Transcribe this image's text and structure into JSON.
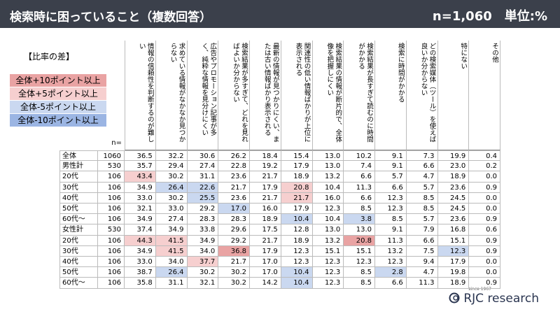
{
  "header": {
    "title": "検索時に困っていること（複数回答）",
    "note": "n=1,060　単位:%"
  },
  "legend": {
    "title": "【比率の差】",
    "items": [
      {
        "label": "全体+10ポイント以上",
        "color": "#e9a3a3"
      },
      {
        "label": "全体+5ポイント以上",
        "color": "#f6cfcf"
      },
      {
        "label": "全体-5ポイント以上",
        "color": "#cad8f0"
      },
      {
        "label": "全体-10ポイント以上",
        "color": "#9bb5e3"
      }
    ]
  },
  "table": {
    "n_label": "n=",
    "columns": [
      "情報の信頼性を判断するのが難しい",
      "求めている情報がなかなか見つからない",
      "広告やプロモーション記事が多く、純粋な情報を見分けにくい",
      "検索結果が多すぎて、どれを見ればよいか分からない",
      "最新の情報が見つかりにくい、または古い情報ばかり表示される",
      "関連性の低い情報ばかりが上位に表示される",
      "検索結果の情報が断片的で、全体像を把握しにくい",
      "検索結果が長すぎて読むのに時間がかかる",
      "検索に時間がかかる",
      "どの検索媒体（ツール）を使えば良いか分からない",
      "特にない",
      "その他"
    ],
    "rows": [
      {
        "label": "全体",
        "n": "1060",
        "cells": [
          "36.5",
          "32.2",
          "30.6",
          "26.2",
          "18.4",
          "15.4",
          "13.0",
          "10.2",
          "9.1",
          "7.3",
          "19.9",
          "0.4"
        ],
        "highlight": [
          null,
          null,
          null,
          null,
          null,
          null,
          null,
          null,
          null,
          null,
          null,
          null
        ]
      },
      {
        "label": "男性計",
        "n": "530",
        "cells": [
          "35.7",
          "29.4",
          "27.4",
          "22.8",
          "19.2",
          "17.9",
          "13.0",
          "7.4",
          "9.1",
          "6.6",
          "23.0",
          "0.2"
        ],
        "highlight": [
          null,
          null,
          null,
          null,
          null,
          null,
          null,
          null,
          null,
          null,
          null,
          null
        ]
      },
      {
        "label": "20代",
        "n": "106",
        "cells": [
          "43.4",
          "30.2",
          "31.1",
          "23.6",
          "21.7",
          "18.9",
          "13.2",
          "6.6",
          "5.7",
          "4.7",
          "18.9",
          "0.0"
        ],
        "highlight": [
          1,
          null,
          null,
          null,
          null,
          null,
          null,
          null,
          null,
          null,
          null,
          null
        ]
      },
      {
        "label": "30代",
        "n": "106",
        "cells": [
          "34.9",
          "26.4",
          "22.6",
          "21.7",
          "17.9",
          "20.8",
          "10.4",
          "11.3",
          "6.6",
          "5.7",
          "23.6",
          "0.9"
        ],
        "highlight": [
          null,
          2,
          2,
          null,
          null,
          1,
          null,
          null,
          null,
          null,
          null,
          null
        ]
      },
      {
        "label": "40代",
        "n": "106",
        "cells": [
          "33.0",
          "30.2",
          "25.5",
          "23.6",
          "21.7",
          "21.7",
          "16.0",
          "6.6",
          "12.3",
          "8.5",
          "24.5",
          "0.0"
        ],
        "highlight": [
          null,
          null,
          2,
          null,
          null,
          1,
          null,
          null,
          null,
          null,
          null,
          null
        ]
      },
      {
        "label": "50代",
        "n": "106",
        "cells": [
          "32.1",
          "33.0",
          "29.2",
          "17.0",
          "16.0",
          "17.9",
          "12.3",
          "8.5",
          "12.3",
          "8.5",
          "24.5",
          "0.0"
        ],
        "highlight": [
          null,
          null,
          null,
          2,
          null,
          null,
          null,
          null,
          null,
          null,
          null,
          null
        ]
      },
      {
        "label": "60代～",
        "n": "106",
        "cells": [
          "34.9",
          "27.4",
          "28.3",
          "28.3",
          "18.9",
          "10.4",
          "10.4",
          "3.8",
          "8.5",
          "5.7",
          "23.6",
          "0.9"
        ],
        "highlight": [
          null,
          null,
          null,
          null,
          null,
          2,
          null,
          2,
          null,
          null,
          null,
          null
        ]
      },
      {
        "label": "女性計",
        "n": "530",
        "cells": [
          "37.4",
          "34.9",
          "33.8",
          "29.6",
          "17.5",
          "12.8",
          "13.0",
          "13.0",
          "9.1",
          "7.9",
          "16.8",
          "0.6"
        ],
        "highlight": [
          null,
          null,
          null,
          null,
          null,
          null,
          null,
          null,
          null,
          null,
          null,
          null
        ]
      },
      {
        "label": "20代",
        "n": "106",
        "cells": [
          "44.3",
          "41.5",
          "34.9",
          "29.2",
          "21.7",
          "18.9",
          "13.2",
          "20.8",
          "11.3",
          "6.6",
          "15.1",
          "0.9"
        ],
        "highlight": [
          1,
          1,
          null,
          null,
          null,
          null,
          null,
          0,
          null,
          null,
          null,
          null
        ]
      },
      {
        "label": "30代",
        "n": "106",
        "cells": [
          "34.9",
          "41.5",
          "34.0",
          "36.8",
          "17.9",
          "12.3",
          "15.1",
          "15.1",
          "13.2",
          "7.5",
          "12.3",
          "0.9"
        ],
        "highlight": [
          null,
          1,
          null,
          0,
          null,
          null,
          null,
          null,
          null,
          null,
          2,
          null
        ]
      },
      {
        "label": "40代",
        "n": "106",
        "cells": [
          "33.0",
          "34.0",
          "37.7",
          "21.7",
          "17.0",
          "12.3",
          "12.3",
          "12.3",
          "12.3",
          "9.4",
          "17.9",
          "0.0"
        ],
        "highlight": [
          null,
          null,
          1,
          null,
          null,
          null,
          null,
          null,
          null,
          null,
          null,
          null
        ]
      },
      {
        "label": "50代",
        "n": "106",
        "cells": [
          "38.7",
          "26.4",
          "30.2",
          "30.2",
          "17.0",
          "10.4",
          "12.3",
          "8.5",
          "2.8",
          "4.7",
          "19.8",
          "0.0"
        ],
        "highlight": [
          null,
          2,
          null,
          null,
          null,
          2,
          null,
          null,
          2,
          null,
          null,
          null
        ]
      },
      {
        "label": "60代～",
        "n": "106",
        "cells": [
          "35.8",
          "31.1",
          "32.1",
          "30.2",
          "14.2",
          "10.4",
          "12.3",
          "8.5",
          "6.6",
          "11.3",
          "18.9",
          "0.9"
        ],
        "highlight": [
          null,
          null,
          null,
          null,
          null,
          2,
          null,
          null,
          null,
          null,
          null,
          null
        ]
      }
    ]
  },
  "logo": {
    "name": "RJC research",
    "since": "since 1967"
  }
}
